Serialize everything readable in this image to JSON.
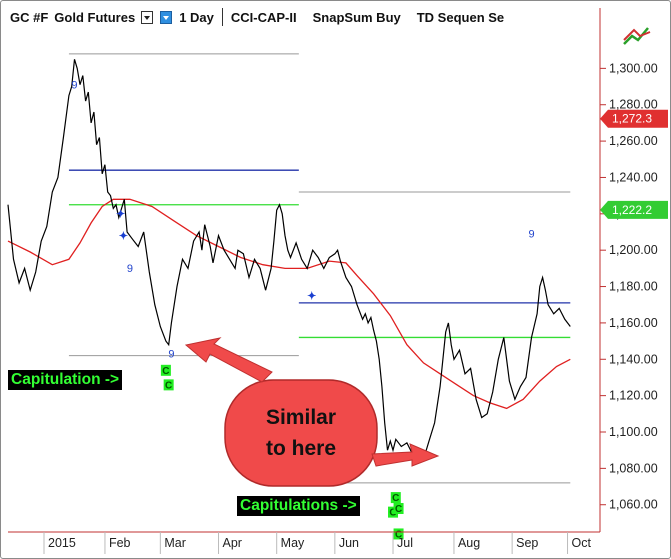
{
  "toolbar": {
    "symbol": "GC #F",
    "name": "Gold Futures",
    "interval": "1 Day",
    "study_1": "CCI-CAP-II",
    "study_2": "SnapSum Buy",
    "study_3": "TD Sequen Se"
  },
  "colors": {
    "price": "#000000",
    "moving_average": "#e02020",
    "blue_level": "#2233aa",
    "green_level": "#33dd33",
    "grey_level": "#999999",
    "annotation_fill": "#f04a4a",
    "capitulation_text": "#33ff33",
    "last_price_tag": "#e03030",
    "ma_price_tag": "#33cc33"
  },
  "price_tags": {
    "last": "1,272.3",
    "ma": "1,222.2"
  },
  "annotations": {
    "capitulation": "Capitulation ->",
    "capitulations": "Capitulations ->",
    "callout_line1": "Similar",
    "callout_line2": "to here"
  },
  "icons": {
    "top_right": "chart-trend-icon"
  },
  "chart_data": {
    "type": "line",
    "title": "",
    "xlabel": "",
    "ylabel": "",
    "ylim": [
      1045,
      1320
    ],
    "x_tick_labels": [
      "2015",
      "Feb",
      "Mar",
      "Apr",
      "May",
      "Jun",
      "Jul",
      "Aug",
      "Sep",
      "Oct"
    ],
    "x_tick_positions": [
      5,
      27,
      47,
      68,
      89,
      110,
      131,
      153,
      174,
      194
    ],
    "y_ticks": [
      1060,
      1080,
      1100,
      1120,
      1140,
      1160,
      1180,
      1200,
      1220,
      1240,
      1260,
      1280,
      1300
    ],
    "y_tick_labels": [
      "1,060.00",
      "1,080.00",
      "1,100.00",
      "1,120.00",
      "1,140.00",
      "1,160.00",
      "1,180.00",
      "1,200.00",
      "1,220.00",
      "1,240.00",
      "1,260.00",
      "1,280.00",
      "1,300.00"
    ],
    "x_range": [
      -8,
      205
    ],
    "series": [
      {
        "values": [
          [
            -8,
            1225
          ],
          [
            -6,
            1195
          ],
          [
            -4,
            1182
          ],
          [
            -2,
            1190
          ],
          [
            0,
            1178
          ],
          [
            2,
            1188
          ],
          [
            4,
            1205
          ],
          [
            6,
            1213
          ],
          [
            8,
            1232
          ],
          [
            10,
            1240
          ],
          [
            12,
            1262
          ],
          [
            14,
            1285
          ],
          [
            15,
            1290
          ],
          [
            16,
            1305
          ],
          [
            17,
            1300
          ],
          [
            18,
            1291
          ],
          [
            19,
            1296
          ],
          [
            20,
            1282
          ],
          [
            21,
            1287
          ],
          [
            22,
            1270
          ],
          [
            23,
            1276
          ],
          [
            24,
            1258
          ],
          [
            25,
            1262
          ],
          [
            26,
            1242
          ],
          [
            27,
            1247
          ],
          [
            28,
            1232
          ],
          [
            29,
            1230
          ],
          [
            30,
            1223
          ],
          [
            31,
            1225
          ],
          [
            32,
            1218
          ],
          [
            34,
            1228
          ],
          [
            35,
            1210
          ],
          [
            37,
            1206
          ],
          [
            39,
            1202
          ],
          [
            41,
            1210
          ],
          [
            43,
            1188
          ],
          [
            45,
            1170
          ],
          [
            47,
            1158
          ],
          [
            49,
            1150
          ],
          [
            50,
            1148
          ],
          [
            51,
            1160
          ],
          [
            53,
            1180
          ],
          [
            55,
            1195
          ],
          [
            57,
            1190
          ],
          [
            59,
            1205
          ],
          [
            61,
            1210
          ],
          [
            62,
            1200
          ],
          [
            63,
            1214
          ],
          [
            65,
            1202
          ],
          [
            66,
            1193
          ],
          [
            68,
            1208
          ],
          [
            70,
            1200
          ],
          [
            72,
            1195
          ],
          [
            74,
            1190
          ],
          [
            75,
            1200
          ],
          [
            77,
            1198
          ],
          [
            79,
            1185
          ],
          [
            81,
            1195
          ],
          [
            83,
            1190
          ],
          [
            85,
            1178
          ],
          [
            87,
            1190
          ],
          [
            88,
            1205
          ],
          [
            89,
            1222
          ],
          [
            90,
            1225
          ],
          [
            91,
            1220
          ],
          [
            92,
            1208
          ],
          [
            93,
            1200
          ],
          [
            94,
            1196
          ],
          [
            96,
            1204
          ],
          [
            98,
            1195
          ],
          [
            100,
            1190
          ],
          [
            102,
            1200
          ],
          [
            104,
            1196
          ],
          [
            106,
            1190
          ],
          [
            108,
            1196
          ],
          [
            110,
            1198
          ],
          [
            111,
            1200
          ],
          [
            112,
            1194
          ],
          [
            114,
            1185
          ],
          [
            116,
            1180
          ],
          [
            118,
            1170
          ],
          [
            120,
            1162
          ],
          [
            121,
            1165
          ],
          [
            122,
            1160
          ],
          [
            123,
            1163
          ],
          [
            124,
            1156
          ],
          [
            125,
            1150
          ],
          [
            126,
            1140
          ],
          [
            127,
            1125
          ],
          [
            128,
            1105
          ],
          [
            129,
            1090
          ],
          [
            130,
            1095
          ],
          [
            131,
            1090
          ],
          [
            132,
            1096
          ],
          [
            134,
            1092
          ],
          [
            136,
            1094
          ],
          [
            138,
            1088
          ],
          [
            140,
            1086
          ],
          [
            142,
            1085
          ],
          [
            144,
            1095
          ],
          [
            146,
            1105
          ],
          [
            148,
            1125
          ],
          [
            150,
            1155
          ],
          [
            151,
            1160
          ],
          [
            152,
            1148
          ],
          [
            153,
            1140
          ],
          [
            155,
            1145
          ],
          [
            157,
            1132
          ],
          [
            159,
            1135
          ],
          [
            161,
            1118
          ],
          [
            163,
            1108
          ],
          [
            165,
            1110
          ],
          [
            167,
            1122
          ],
          [
            169,
            1140
          ],
          [
            171,
            1152
          ],
          [
            173,
            1128
          ],
          [
            175,
            1118
          ],
          [
            177,
            1125
          ],
          [
            179,
            1130
          ],
          [
            181,
            1152
          ],
          [
            183,
            1165
          ],
          [
            184,
            1180
          ],
          [
            185,
            1185
          ],
          [
            186,
            1178
          ],
          [
            187,
            1170
          ],
          [
            189,
            1165
          ],
          [
            191,
            1168
          ],
          [
            193,
            1162
          ],
          [
            195,
            1158
          ]
        ],
        "markers": []
      },
      {
        "values": [
          [
            -8,
            1205
          ],
          [
            0,
            1199
          ],
          [
            8,
            1192
          ],
          [
            14,
            1195
          ],
          [
            18,
            1204
          ],
          [
            22,
            1215
          ],
          [
            26,
            1224
          ],
          [
            30,
            1228
          ],
          [
            36,
            1228
          ],
          [
            44,
            1224
          ],
          [
            52,
            1216
          ],
          [
            60,
            1208
          ],
          [
            68,
            1202
          ],
          [
            76,
            1196
          ],
          [
            84,
            1192
          ],
          [
            92,
            1190
          ],
          [
            100,
            1190
          ],
          [
            108,
            1194
          ],
          [
            114,
            1193
          ],
          [
            118,
            1186
          ],
          [
            124,
            1176
          ],
          [
            130,
            1164
          ],
          [
            136,
            1148
          ],
          [
            142,
            1138
          ],
          [
            148,
            1132
          ],
          [
            154,
            1126
          ],
          [
            160,
            1120
          ],
          [
            166,
            1116
          ],
          [
            172,
            1113
          ],
          [
            178,
            1118
          ],
          [
            184,
            1128
          ],
          [
            190,
            1136
          ],
          [
            195,
            1140
          ]
        ]
      }
    ],
    "levels": [
      {
        "kind": "grey",
        "value": 1308,
        "x_range": [
          14,
          97
        ]
      },
      {
        "kind": "blue",
        "value": 1244,
        "x_range": [
          14,
          97
        ]
      },
      {
        "kind": "green",
        "value": 1225,
        "x_range": [
          14,
          97
        ]
      },
      {
        "kind": "grey",
        "value": 1142,
        "x_range": [
          14,
          97
        ]
      },
      {
        "kind": "grey",
        "value": 1232,
        "x_range": [
          97,
          195
        ]
      },
      {
        "kind": "blue",
        "value": 1171,
        "x_range": [
          97,
          195
        ]
      },
      {
        "kind": "green",
        "value": 1152,
        "x_range": [
          97,
          195
        ]
      },
      {
        "kind": "grey",
        "value": 1072,
        "x_range": [
          97,
          195
        ]
      }
    ],
    "td_nines": [
      {
        "x": 16,
        "y": 1289
      },
      {
        "x": 36,
        "y": 1188
      },
      {
        "x": 51,
        "y": 1141
      },
      {
        "x": 181,
        "y": 1207
      }
    ],
    "grid": false,
    "legend": "none"
  }
}
